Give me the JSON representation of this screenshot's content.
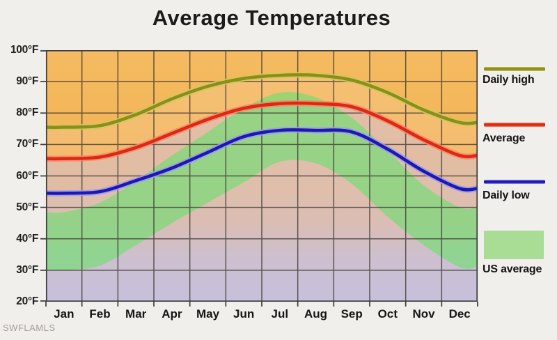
{
  "title": "Average Temperatures",
  "watermark": "SWFLAMLS",
  "legend": [
    {
      "label": "Daily high",
      "swatch": "line",
      "color": "#8d8d1c",
      "halo": "#cbcb5a"
    },
    {
      "label": "Average",
      "swatch": "line",
      "color": "#de2810",
      "halo": "#f2876e"
    },
    {
      "label": "Daily low",
      "swatch": "line",
      "color": "#1b18b4",
      "halo": "#9e9ae8"
    },
    {
      "label": "US average",
      "swatch": "rect",
      "color": "#a9dd96",
      "halo": "#a9dd96"
    }
  ],
  "chart_data": {
    "type": "line",
    "title": "Average Temperatures",
    "categories": [
      "Jan",
      "Feb",
      "Mar",
      "Apr",
      "May",
      "Jun",
      "Jul",
      "Aug",
      "Sep",
      "Oct",
      "Nov",
      "Dec"
    ],
    "series": [
      {
        "name": "Daily high",
        "color": "#8d8d1c",
        "halo": "#cbcb5a",
        "values": [
          75.5,
          76,
          79.5,
          84.5,
          88.5,
          91,
          92,
          92,
          90.5,
          86.5,
          81,
          77
        ]
      },
      {
        "name": "Average",
        "color": "#de2810",
        "halo": "#f2876e",
        "values": [
          65.5,
          66,
          69,
          73.5,
          78,
          81.5,
          83,
          83,
          82,
          77.5,
          71.5,
          66.5
        ]
      },
      {
        "name": "Daily low",
        "color": "#1b18b4",
        "halo": "#9e9ae8",
        "values": [
          54.5,
          55,
          58.5,
          62.5,
          67.5,
          72.5,
          74.5,
          74.5,
          74,
          68.5,
          61.5,
          56
        ]
      }
    ],
    "band": {
      "name": "US average",
      "color": "rgba(112,222,114,0.66)",
      "high": [
        48.5,
        51.5,
        58.5,
        66.5,
        74,
        81.5,
        86.5,
        85,
        78.5,
        68,
        57,
        50
      ],
      "low": [
        30,
        31.5,
        38,
        45,
        51.5,
        58,
        64.5,
        64,
        57.5,
        47,
        38,
        31
      ]
    },
    "ylabel": "",
    "xlabel": "",
    "ylim": [
      20,
      100
    ],
    "y_ticks": [
      "100°F",
      "90°F",
      "80°F",
      "70°F",
      "60°F",
      "50°F",
      "40°F",
      "30°F",
      "20°F"
    ],
    "grid": true,
    "legend_position": "right",
    "background_top": "#f5bb60",
    "background_bottom": "#efa84b",
    "bottom_region_color": "#bac4f8"
  }
}
